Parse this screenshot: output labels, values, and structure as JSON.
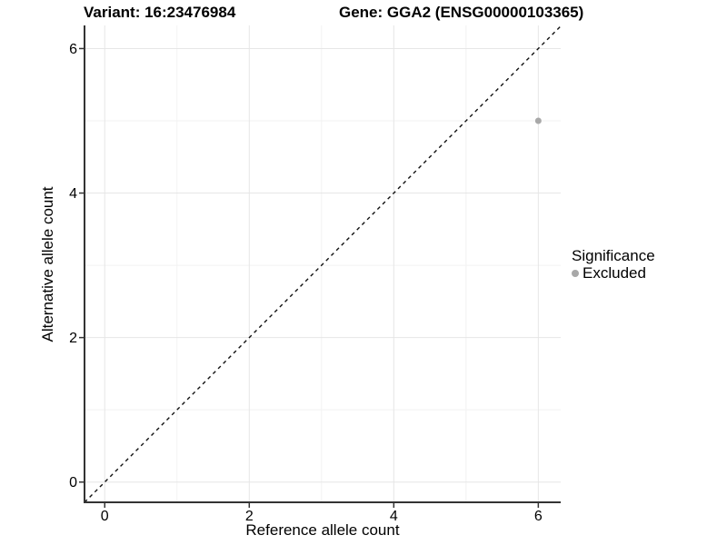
{
  "titles": {
    "variant": "Variant: 16:23476984",
    "gene": "Gene: GGA2 (ENSG00000103365)"
  },
  "chart_data": {
    "type": "scatter",
    "xlabel": "Reference allele count",
    "ylabel": "Alternative allele count",
    "xlim": [
      -0.28,
      6.31
    ],
    "ylim": [
      -0.28,
      6.32
    ],
    "x_major_ticks": [
      0,
      2,
      4,
      6
    ],
    "y_major_ticks": [
      0,
      2,
      4,
      6
    ],
    "x_minor_ticks": [
      1,
      3,
      5
    ],
    "y_minor_ticks": [
      1,
      3,
      5
    ],
    "grid": true,
    "series": [
      {
        "name": "Excluded",
        "points": [
          {
            "x": 6,
            "y": 5
          }
        ],
        "color": "#a8a8a8"
      }
    ],
    "reference_line": {
      "type": "identity",
      "slope": 1,
      "intercept": 0,
      "style": "dashed",
      "color": "#111111"
    },
    "legend": {
      "title": "Significance",
      "position": "right",
      "entries": [
        {
          "label": "Excluded",
          "color": "#a8a8a8"
        }
      ]
    }
  },
  "colors": {
    "background": "#ffffff",
    "axis_line": "#333333",
    "tick_mark": "#333333",
    "grid_major": "#e6e6e6",
    "grid_minor": "#f2f2f2",
    "text": "#000000",
    "point": "#a8a8a8"
  }
}
